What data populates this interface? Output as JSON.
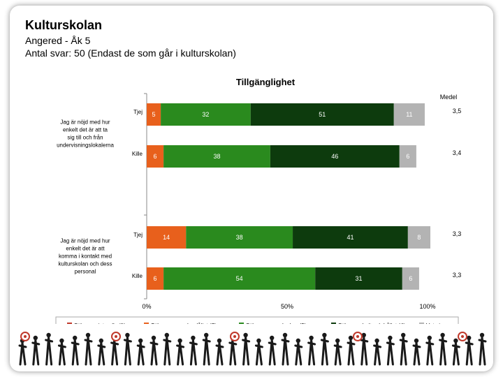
{
  "header": {
    "title": "Kulturskolan",
    "subtitle_1": "Angered - Åk 5",
    "subtitle_2": "Antal svar: 50 (Endast de som går i kulturskolan)"
  },
  "chart_data": {
    "type": "bar",
    "orientation": "horizontal",
    "stacked": "percent",
    "title": "Tillgänglighet",
    "mean_header": "Medel",
    "x_ticks": [
      "0%",
      "50%",
      "100%"
    ],
    "xlim": [
      0,
      100
    ],
    "groups": [
      {
        "label": "Jag är nöjd med hur enkelt det är att ta sig till och från undervisningslokalerna",
        "rows": [
          {
            "label": "Tjej",
            "values": [
              0,
              5,
              32,
              51,
              11
            ],
            "mean": "3,5"
          },
          {
            "label": "Kille",
            "values": [
              0,
              6,
              38,
              46,
              6
            ],
            "mean": "3,4"
          }
        ]
      },
      {
        "label": "Jag är nöjd med hur enkelt det är att komma i kontakt med kulturskolan och dess personal",
        "rows": [
          {
            "label": "Tjej",
            "values": [
              0,
              14,
              38,
              41,
              8
            ],
            "mean": "3,3"
          },
          {
            "label": "Kille",
            "values": [
              0,
              6,
              54,
              31,
              6
            ],
            "mean": "3,3"
          }
        ]
      }
    ],
    "series": [
      {
        "name": "Stämmer inte alls (1)",
        "color": "#c0392b"
      },
      {
        "name": "Stämmer ganska dåligt (2)",
        "color": "#e8601c"
      },
      {
        "name": "Stämmer ganska bra (3)",
        "color": "#2a8a1e"
      },
      {
        "name": "Stämmer helt och hållet (4)",
        "color": "#0d3b0d"
      },
      {
        "name": "Vet ej",
        "color": "#b3b3b3"
      }
    ]
  }
}
